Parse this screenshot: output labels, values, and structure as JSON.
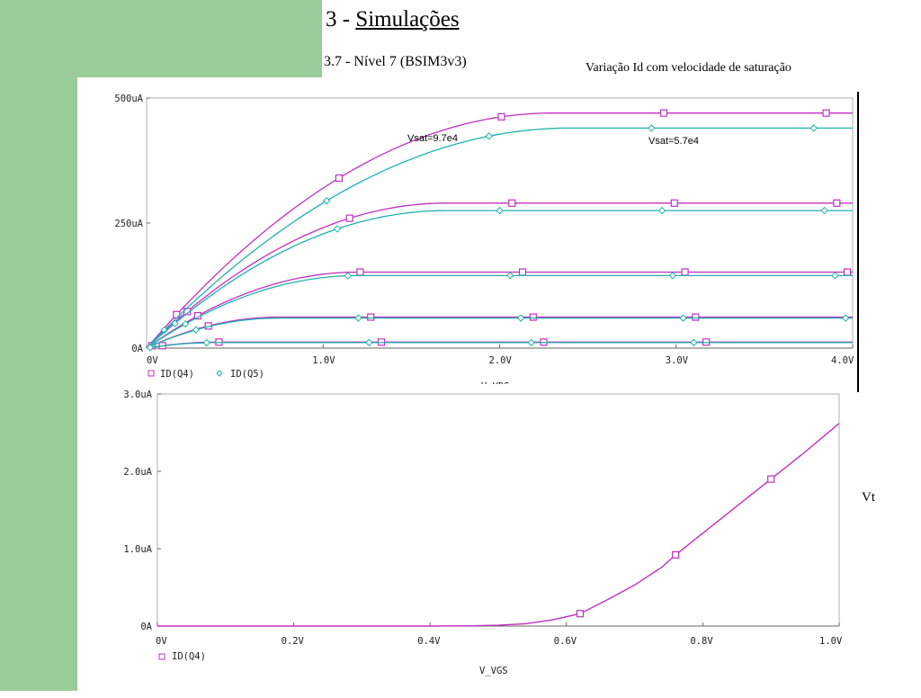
{
  "slide": {
    "title_prefix": "3 - ",
    "title_link": "Simulações",
    "subtitle": "3.7 - Nível 7  (BSIM3v3)",
    "caption": "Variação Id com velocidade de saturação",
    "side_label": "Vt"
  },
  "colors": {
    "background_green": "#99cc99",
    "series_q4": "#c030c0",
    "series_q5": "#20b0b0"
  },
  "chart_data": [
    {
      "type": "line",
      "xlabel": "V_VDS",
      "ylabel": "",
      "xlim": [
        0,
        4.0
      ],
      "ylim": [
        0,
        500
      ],
      "grid": false,
      "x_ticks": [
        "0V",
        "1.0V",
        "2.0V",
        "3.0V",
        "4.0V"
      ],
      "y_ticks": [
        "0A",
        "250uA",
        "500uA"
      ],
      "legend": [
        "ID(Q4)",
        "ID(Q5)"
      ],
      "annotations": [
        "Vsat=9.7e4",
        "Vsat=5.7e4"
      ],
      "series": [
        {
          "name": "ID(Q4)",
          "curves": [
            {
              "vdsat": 2.3,
              "isat": 470
            },
            {
              "vdsat": 1.7,
              "isat": 290
            },
            {
              "vdsat": 1.2,
              "isat": 152
            },
            {
              "vdsat": 0.75,
              "isat": 62
            },
            {
              "vdsat": 0.4,
              "isat": 12
            }
          ]
        },
        {
          "name": "ID(Q5)",
          "curves": [
            {
              "vdsat": 2.4,
              "isat": 440
            },
            {
              "vdsat": 1.7,
              "isat": 275
            },
            {
              "vdsat": 1.2,
              "isat": 145
            },
            {
              "vdsat": 0.75,
              "isat": 60
            },
            {
              "vdsat": 0.4,
              "isat": 11
            }
          ]
        }
      ]
    },
    {
      "type": "line",
      "xlabel": "V_VGS",
      "ylabel": "",
      "xlim": [
        0,
        1.0
      ],
      "ylim": [
        0,
        3.0
      ],
      "grid": false,
      "x_ticks": [
        "0V",
        "0.2V",
        "0.4V",
        "0.6V",
        "0.8V",
        "1.0V"
      ],
      "y_ticks": [
        "0A",
        "1.0uA",
        "2.0uA",
        "3.0uA"
      ],
      "legend": [
        "ID(Q4)"
      ],
      "series": [
        {
          "name": "ID(Q4)",
          "points": [
            [
              0.0,
              0.0
            ],
            [
              0.4,
              0.0
            ],
            [
              0.46,
              0.004
            ],
            [
              0.5,
              0.01
            ],
            [
              0.54,
              0.03
            ],
            [
              0.58,
              0.08
            ],
            [
              0.62,
              0.16
            ],
            [
              0.66,
              0.34
            ],
            [
              0.7,
              0.53
            ],
            [
              0.74,
              0.76
            ],
            [
              0.76,
              0.92
            ],
            [
              0.8,
              1.2
            ],
            [
              0.85,
              1.55
            ],
            [
              0.9,
              1.9
            ],
            [
              0.95,
              2.25
            ],
            [
              1.0,
              2.62
            ]
          ]
        }
      ]
    }
  ]
}
